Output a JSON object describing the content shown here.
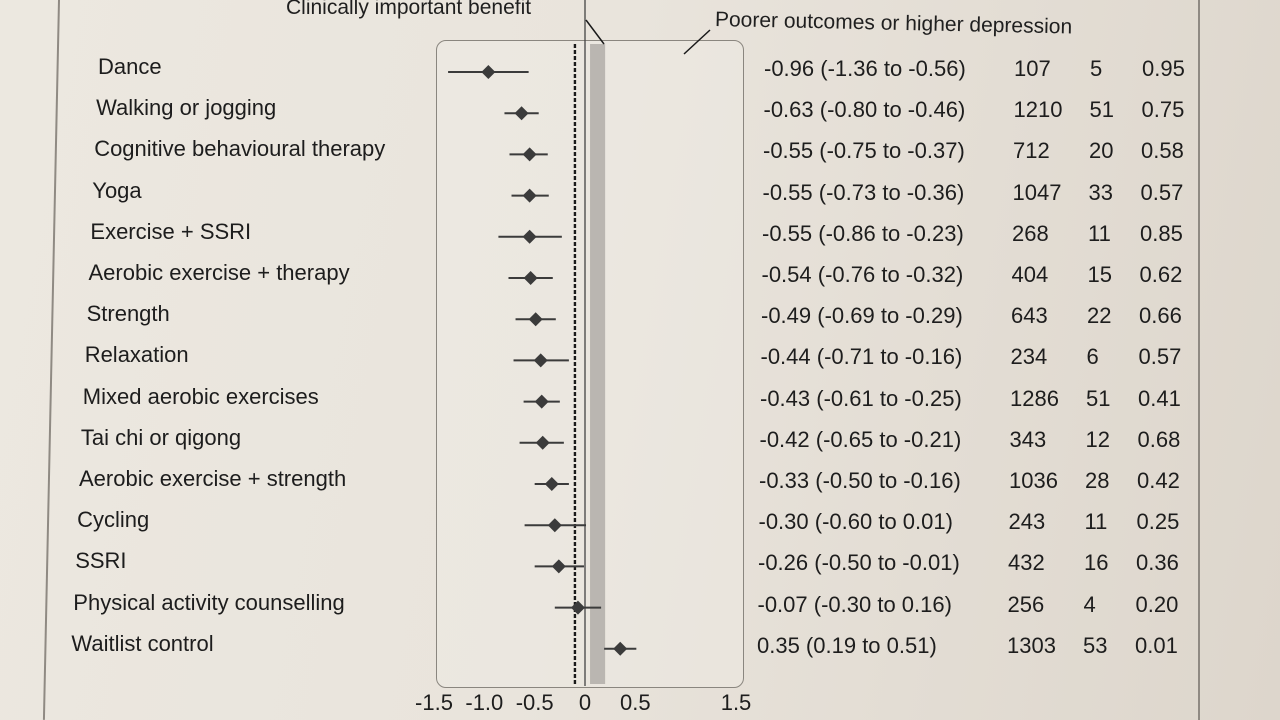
{
  "chart_data": {
    "type": "forest",
    "header_left": "Clinically important benefit",
    "header_right": "Poorer outcomes or higher depression",
    "xlim": [
      -1.5,
      1.5
    ],
    "x_ticks": [
      "-1.5",
      "-1.0",
      "-0.5",
      "0",
      "0.5",
      "1.5"
    ],
    "reference_lines": [
      0,
      -0.1
    ],
    "shaded_band": [
      0.05,
      0.2
    ],
    "rows": [
      {
        "label": "Dance",
        "estimate": -0.96,
        "lo": -1.36,
        "hi": -0.56,
        "ci_text": "-0.96 (-1.36 to -0.56)",
        "n": "107",
        "k": "5",
        "p": "0.95"
      },
      {
        "label": "Walking or jogging",
        "estimate": -0.63,
        "lo": -0.8,
        "hi": -0.46,
        "ci_text": "-0.63 (-0.80 to -0.46)",
        "n": "1210",
        "k": "51",
        "p": "0.75"
      },
      {
        "label": "Cognitive behavioural therapy",
        "estimate": -0.55,
        "lo": -0.75,
        "hi": -0.37,
        "ci_text": "-0.55 (-0.75 to -0.37)",
        "n": "712",
        "k": "20",
        "p": "0.58"
      },
      {
        "label": "Yoga",
        "estimate": -0.55,
        "lo": -0.73,
        "hi": -0.36,
        "ci_text": "-0.55 (-0.73 to -0.36)",
        "n": "1047",
        "k": "33",
        "p": "0.57"
      },
      {
        "label": "Exercise + SSRI",
        "estimate": -0.55,
        "lo": -0.86,
        "hi": -0.23,
        "ci_text": "-0.55 (-0.86 to -0.23)",
        "n": "268",
        "k": "11",
        "p": "0.85"
      },
      {
        "label": "Aerobic exercise + therapy",
        "estimate": -0.54,
        "lo": -0.76,
        "hi": -0.32,
        "ci_text": "-0.54 (-0.76 to -0.32)",
        "n": "404",
        "k": "15",
        "p": "0.62"
      },
      {
        "label": "Strength",
        "estimate": -0.49,
        "lo": -0.69,
        "hi": -0.29,
        "ci_text": "-0.49 (-0.69 to -0.29)",
        "n": "643",
        "k": "22",
        "p": "0.66"
      },
      {
        "label": "Relaxation",
        "estimate": -0.44,
        "lo": -0.71,
        "hi": -0.16,
        "ci_text": "-0.44 (-0.71 to -0.16)",
        "n": "234",
        "k": "6",
        "p": "0.57"
      },
      {
        "label": "Mixed aerobic exercises",
        "estimate": -0.43,
        "lo": -0.61,
        "hi": -0.25,
        "ci_text": "-0.43 (-0.61 to -0.25)",
        "n": "1286",
        "k": "51",
        "p": "0.41"
      },
      {
        "label": "Tai chi or qigong",
        "estimate": -0.42,
        "lo": -0.65,
        "hi": -0.21,
        "ci_text": "-0.42 (-0.65 to -0.21)",
        "n": "343",
        "k": "12",
        "p": "0.68"
      },
      {
        "label": "Aerobic exercise + strength",
        "estimate": -0.33,
        "lo": -0.5,
        "hi": -0.16,
        "ci_text": "-0.33 (-0.50 to -0.16)",
        "n": "1036",
        "k": "28",
        "p": "0.42"
      },
      {
        "label": "Cycling",
        "estimate": -0.3,
        "lo": -0.6,
        "hi": 0.01,
        "ci_text": "-0.30 (-0.60 to 0.01)",
        "n": "243",
        "k": "11",
        "p": "0.25"
      },
      {
        "label": "SSRI",
        "estimate": -0.26,
        "lo": -0.5,
        "hi": -0.01,
        "ci_text": "-0.26 (-0.50 to -0.01)",
        "n": "432",
        "k": "16",
        "p": "0.36"
      },
      {
        "label": "Physical activity counselling",
        "estimate": -0.07,
        "lo": -0.3,
        "hi": 0.16,
        "ci_text": "-0.07 (-0.30 to 0.16)",
        "n": "256",
        "k": "4",
        "p": "0.20"
      },
      {
        "label": "Waitlist control",
        "estimate": 0.35,
        "lo": 0.19,
        "hi": 0.51,
        "ci_text": "0.35 (0.19 to 0.51)",
        "n": "1303",
        "k": "53",
        "p": "0.01"
      }
    ],
    "colors": {
      "marker": "#3b3b3b",
      "band": "#a9a6a1",
      "reference": "#1a1a1a"
    }
  }
}
